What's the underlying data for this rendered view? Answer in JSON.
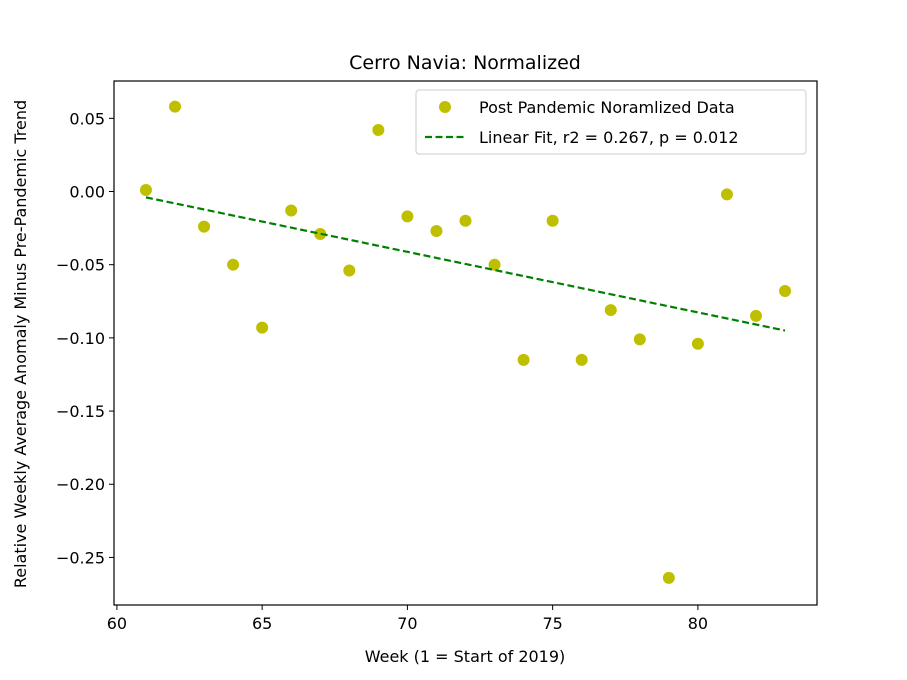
{
  "chart_data": {
    "type": "scatter",
    "title": "Cerro Navia: Normalized",
    "xlabel": "Week (1 = Start of 2019)",
    "ylabel": "Relative Weekly Average Anomaly Minus Pre-Pandemic Trend",
    "xlim": [
      59.9,
      84.1
    ],
    "ylim": [
      -0.2825,
      0.0755
    ],
    "xticks": [
      60,
      65,
      70,
      75,
      80
    ],
    "xtick_labels": [
      "60",
      "65",
      "70",
      "75",
      "80"
    ],
    "yticks": [
      0.05,
      0.0,
      -0.05,
      -0.1,
      -0.15,
      -0.2,
      -0.25
    ],
    "ytick_labels": [
      "0.05",
      "0.00",
      "−0.05",
      "−0.10",
      "−0.15",
      "−0.20",
      "−0.25"
    ],
    "grid": false,
    "legend_position": "top-right",
    "series": [
      {
        "name": "Post Pandemic Noramlized Data",
        "kind": "scatter",
        "color": "#bfbf00",
        "x": [
          61,
          62,
          63,
          64,
          65,
          66,
          67,
          68,
          69,
          70,
          71,
          72,
          73,
          74,
          75,
          76,
          77,
          78,
          79,
          80,
          81,
          82,
          83
        ],
        "y": [
          0.001,
          0.058,
          -0.024,
          -0.05,
          -0.093,
          -0.013,
          -0.029,
          -0.054,
          0.042,
          -0.017,
          -0.027,
          -0.02,
          -0.05,
          -0.115,
          -0.02,
          -0.115,
          -0.081,
          -0.101,
          -0.264,
          -0.104,
          -0.002,
          -0.085,
          -0.068
        ]
      },
      {
        "name": "Linear Fit, r2 = 0.267, p = 0.012",
        "kind": "line",
        "style": "dashed",
        "color": "#008000",
        "x": [
          61,
          83
        ],
        "y": [
          -0.004,
          -0.095
        ]
      }
    ]
  }
}
